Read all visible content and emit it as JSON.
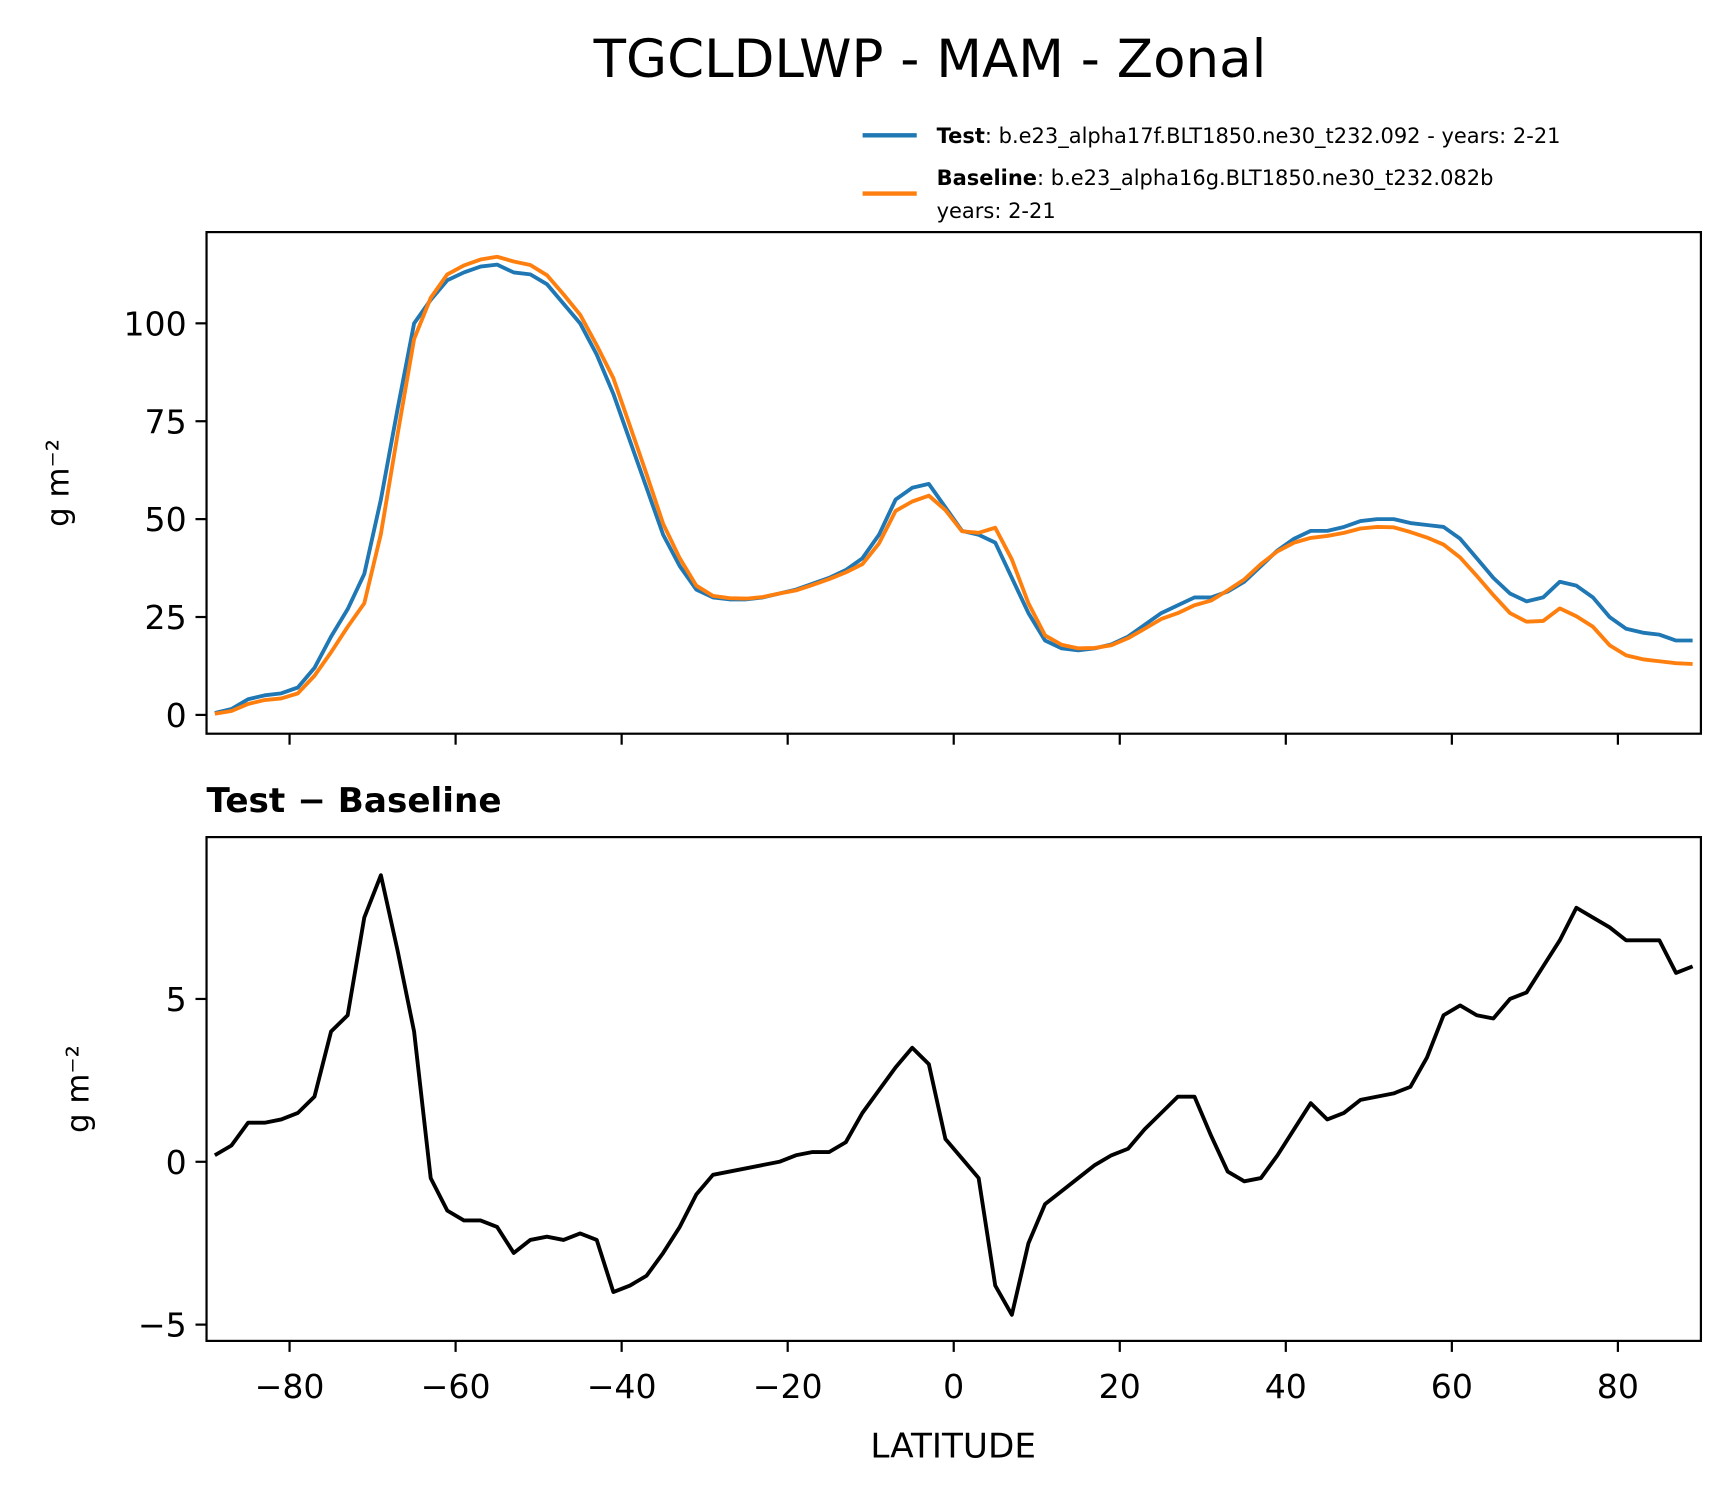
{
  "chart_data": [
    {
      "type": "line",
      "title": "TGCLDLWP - MAM - Zonal",
      "ylabel": "g m⁻²",
      "x": [
        -89,
        -87,
        -85,
        -83,
        -81,
        -79,
        -77,
        -75,
        -73,
        -71,
        -69,
        -67,
        -65,
        -63,
        -61,
        -59,
        -57,
        -55,
        -53,
        -51,
        -49,
        -47,
        -45,
        -43,
        -41,
        -39,
        -37,
        -35,
        -33,
        -31,
        -29,
        -27,
        -25,
        -23,
        -21,
        -19,
        -17,
        -15,
        -13,
        -11,
        -9,
        -7,
        -5,
        -3,
        -1,
        1,
        3,
        5,
        7,
        9,
        11,
        13,
        15,
        17,
        19,
        21,
        23,
        25,
        27,
        29,
        31,
        33,
        35,
        37,
        39,
        41,
        43,
        45,
        47,
        49,
        51,
        53,
        55,
        57,
        59,
        61,
        63,
        65,
        67,
        69,
        71,
        73,
        75,
        77,
        79,
        81,
        83,
        85,
        87,
        89
      ],
      "series": [
        {
          "name": "Test",
          "label_lines": [
            ": b.e23_alpha17f.BLT1850.ne30_t232.092 - years: 2-21"
          ],
          "color": "#1f77b4",
          "values": [
            0.5,
            1.5,
            4,
            5,
            5.5,
            7,
            12,
            20,
            27,
            36,
            55,
            78,
            100,
            106,
            111,
            113,
            114.5,
            115,
            113,
            112.5,
            110,
            105,
            100,
            92,
            82,
            70,
            58,
            46,
            38,
            32,
            30,
            29.5,
            29.5,
            30,
            31,
            32,
            33.5,
            35,
            37,
            40,
            46,
            55,
            58,
            59,
            53,
            47,
            46,
            44,
            35,
            26,
            19,
            17,
            16.5,
            17,
            18,
            20,
            23,
            26,
            28,
            30,
            30,
            31.5,
            34,
            38,
            42,
            45,
            47,
            47,
            48,
            49.5,
            50,
            50,
            49,
            48.5,
            48,
            45,
            40,
            35,
            31,
            29,
            30,
            34,
            33,
            30,
            25,
            22,
            21,
            20.5,
            19,
            19
          ]
        },
        {
          "name": "Baseline",
          "label_lines": [
            ": b.e23_alpha16g.BLT1850.ne30_t232.082b",
            "years: 2-21"
          ],
          "color": "#ff7f0e",
          "values": [
            0.3,
            1.0,
            2.8,
            3.8,
            4.2,
            5.5,
            10,
            16,
            22.5,
            28.5,
            46.2,
            71.5,
            96,
            106.5,
            112.5,
            114.8,
            116.3,
            117,
            115.8,
            114.9,
            112.3,
            107.4,
            102.2,
            94.4,
            86,
            73.8,
            61.5,
            48.8,
            40,
            33,
            30.4,
            29.8,
            29.7,
            30.1,
            31,
            31.8,
            33.2,
            34.7,
            36.4,
            38.5,
            43.8,
            52.1,
            54.5,
            56,
            52.3,
            46.9,
            46.5,
            47.8,
            39.7,
            28.5,
            20.3,
            17.9,
            17,
            17.1,
            17.8,
            19.6,
            22,
            24.5,
            26,
            28,
            29.2,
            31.8,
            34.6,
            38.5,
            41.8,
            44,
            45.2,
            45.7,
            46.5,
            47.6,
            48,
            47.9,
            46.7,
            45.3,
            43.5,
            40.2,
            35.5,
            30.6,
            26,
            23.8,
            24,
            27.2,
            25.2,
            22.5,
            17.8,
            15.2,
            14.2,
            13.7,
            13.2,
            13
          ]
        }
      ],
      "xlim": [
        -90,
        90
      ],
      "ylim": [
        -4.8,
        123.3
      ],
      "yticks": [
        0,
        25,
        50,
        75,
        100
      ]
    },
    {
      "type": "line",
      "title": "Test − Baseline",
      "ylabel": "g m⁻²",
      "xlabel": "LATITUDE",
      "x": [
        -89,
        -87,
        -85,
        -83,
        -81,
        -79,
        -77,
        -75,
        -73,
        -71,
        -69,
        -67,
        -65,
        -63,
        -61,
        -59,
        -57,
        -55,
        -53,
        -51,
        -49,
        -47,
        -45,
        -43,
        -41,
        -39,
        -37,
        -35,
        -33,
        -31,
        -29,
        -27,
        -25,
        -23,
        -21,
        -19,
        -17,
        -15,
        -13,
        -11,
        -9,
        -7,
        -5,
        -3,
        -1,
        1,
        3,
        5,
        7,
        9,
        11,
        13,
        15,
        17,
        19,
        21,
        23,
        25,
        27,
        29,
        31,
        33,
        35,
        37,
        39,
        41,
        43,
        45,
        47,
        49,
        51,
        53,
        55,
        57,
        59,
        61,
        63,
        65,
        67,
        69,
        71,
        73,
        75,
        77,
        79,
        81,
        83,
        85,
        87,
        89
      ],
      "series": [
        {
          "color": "#000000",
          "values": [
            0.2,
            0.5,
            1.2,
            1.2,
            1.3,
            1.5,
            2.0,
            4,
            4.5,
            7.5,
            8.8,
            6.5,
            4,
            -0.5,
            -1.5,
            -1.8,
            -1.8,
            -2,
            -2.8,
            -2.4,
            -2.3,
            -2.4,
            -2.2,
            -2.4,
            -4,
            -3.8,
            -3.5,
            -2.8,
            -2,
            -1,
            -0.4,
            -0.3,
            -0.2,
            -0.1,
            0,
            0.2,
            0.3,
            0.3,
            0.6,
            1.5,
            2.2,
            2.9,
            3.5,
            3.0,
            0.7,
            0.1,
            -0.5,
            -3.8,
            -4.7,
            -2.5,
            -1.3,
            -0.9,
            -0.5,
            -0.1,
            0.2,
            0.4,
            1.0,
            1.5,
            2.0,
            2.0,
            0.8,
            -0.3,
            -0.6,
            -0.5,
            0.2,
            1.0,
            1.8,
            1.3,
            1.5,
            1.9,
            2.0,
            2.1,
            2.3,
            3.2,
            4.5,
            4.8,
            4.5,
            4.4,
            5.0,
            5.2,
            6.0,
            6.8,
            7.8,
            7.5,
            7.2,
            6.8,
            6.8,
            6.8,
            5.8,
            6.0
          ]
        }
      ],
      "xlim": [
        -90,
        90
      ],
      "ylim": [
        -5.5,
        9.97
      ],
      "yticks": [
        {
          "value": -5,
          "label": "−5"
        },
        0,
        5
      ],
      "xticks": [
        {
          "value": -80,
          "label": "−80"
        },
        {
          "value": -60,
          "label": "−60"
        },
        {
          "value": -40,
          "label": "−40"
        },
        {
          "value": -20,
          "label": "−20"
        },
        0,
        20,
        40,
        60,
        80
      ]
    }
  ]
}
